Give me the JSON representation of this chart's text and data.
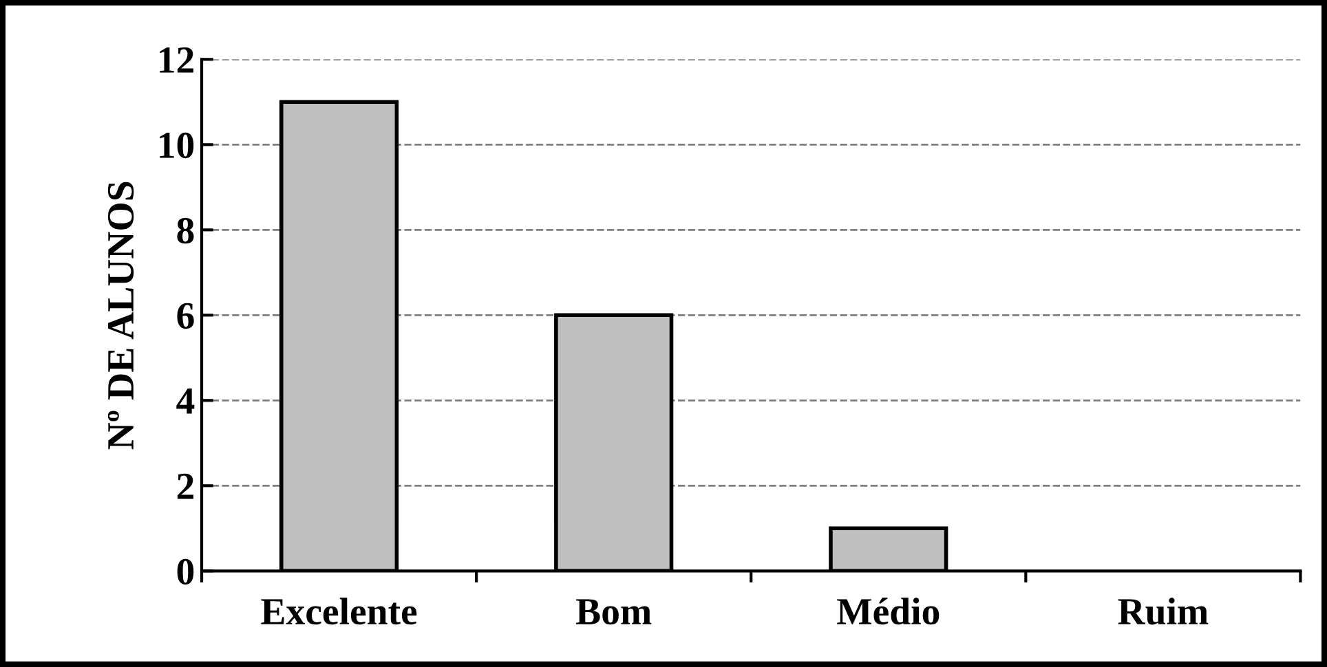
{
  "chart_data": {
    "type": "bar",
    "ylabel": "Nº DE ALUNOS",
    "categories": [
      "Excelente",
      "Bom",
      "Médio",
      "Ruim"
    ],
    "values": [
      11,
      6,
      1,
      0
    ],
    "color": "#bfbfbf",
    "ylim": [
      0,
      12
    ],
    "yticks": [
      0,
      2,
      4,
      6,
      8,
      10,
      12
    ],
    "grid": "y"
  }
}
